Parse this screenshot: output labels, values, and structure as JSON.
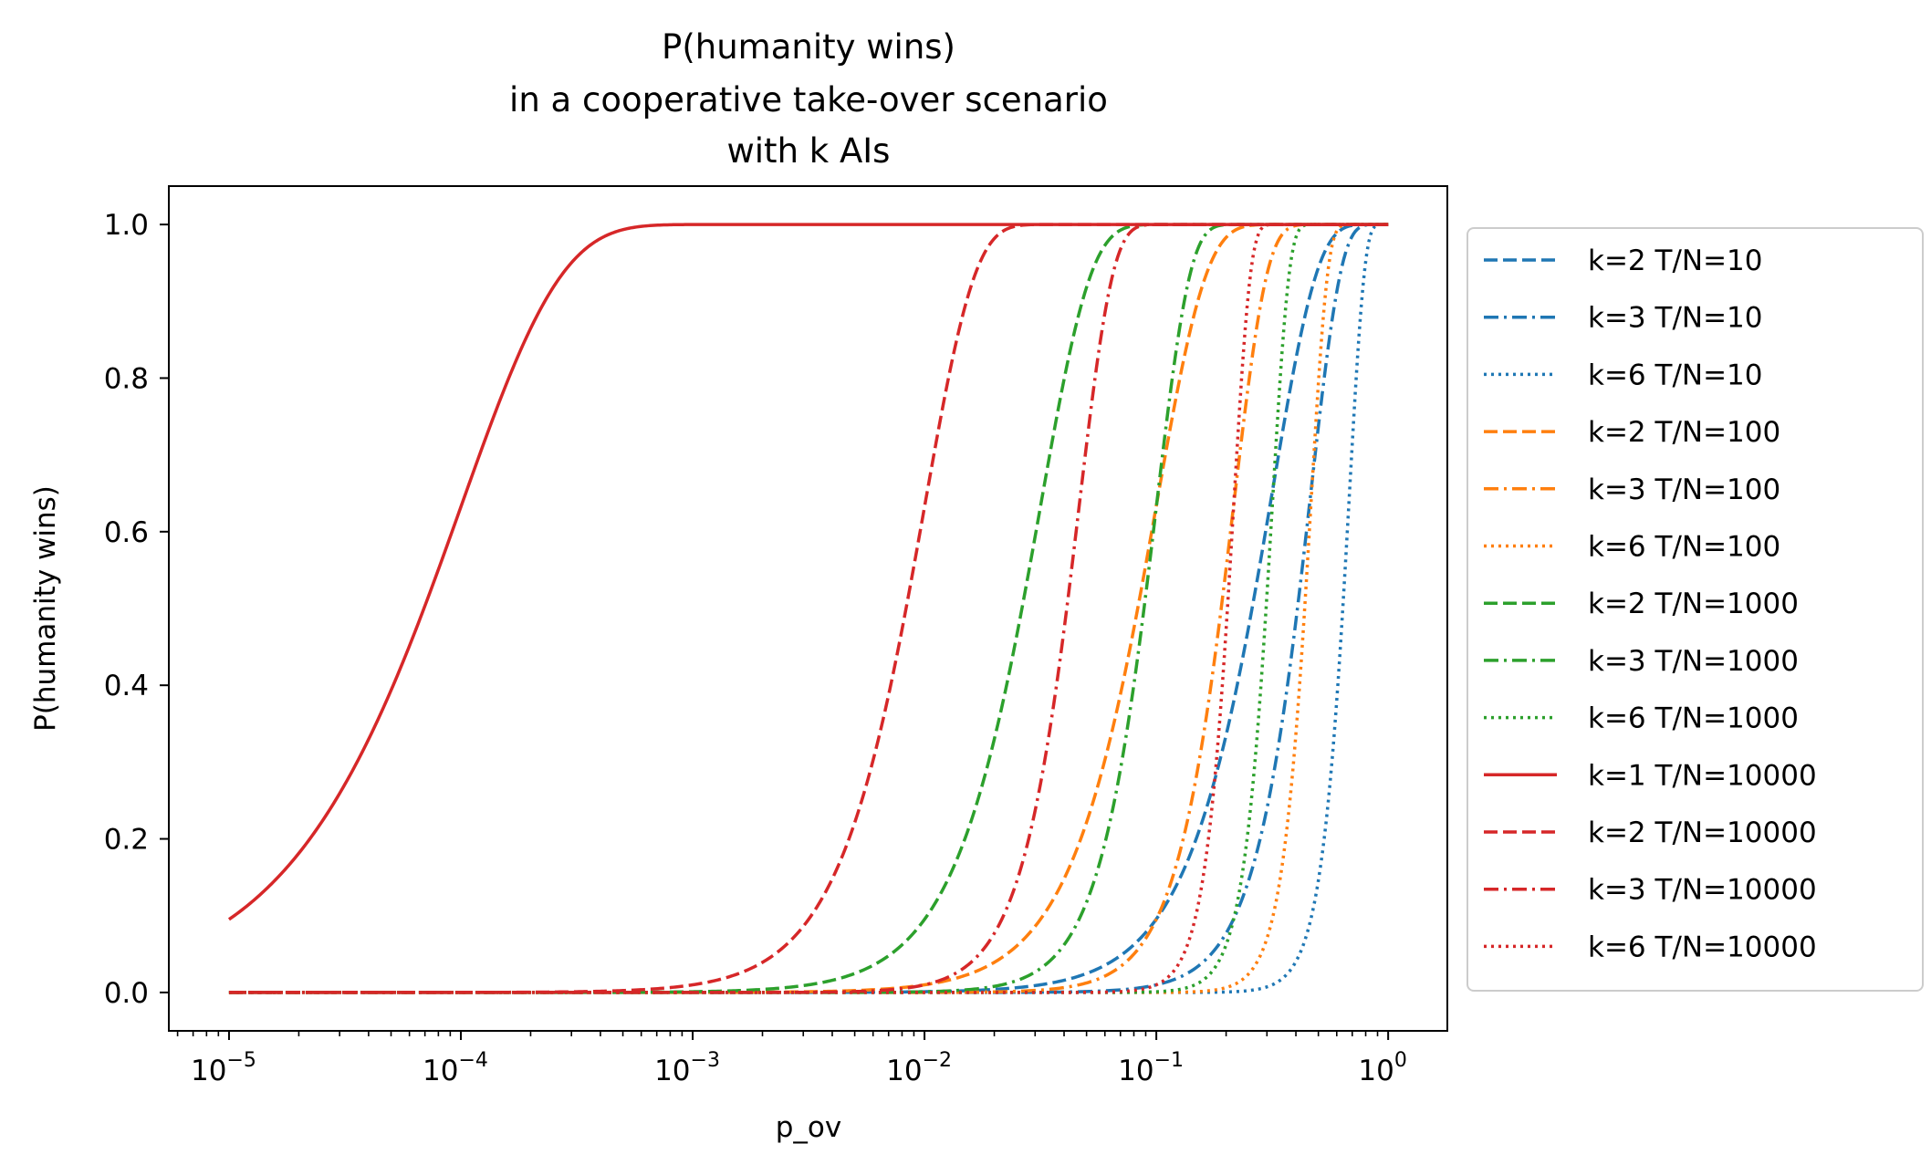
{
  "chart_data": {
    "type": "line",
    "title": [
      "P(humanity wins)",
      "in a cooperative take-over scenario",
      "with k AIs"
    ],
    "xlabel": "p_ov",
    "ylabel": "P(humanity wins)",
    "xscale": "log",
    "xlim": [
      5.5e-06,
      1.8
    ],
    "ylim": [
      -0.05,
      1.05
    ],
    "x_ticks": [
      {
        "value": 1e-05,
        "base": "10",
        "exp": "−5"
      },
      {
        "value": 0.0001,
        "base": "10",
        "exp": "−4"
      },
      {
        "value": 0.001,
        "base": "10",
        "exp": "−3"
      },
      {
        "value": 0.01,
        "base": "10",
        "exp": "−2"
      },
      {
        "value": 0.1,
        "base": "10",
        "exp": "−1"
      },
      {
        "value": 1,
        "base": "10",
        "exp": "0"
      }
    ],
    "y_ticks": [
      "0.0",
      "0.2",
      "0.4",
      "0.6",
      "0.8",
      "1.0"
    ],
    "grid": false,
    "legend_position": "outside right",
    "x_range": [
      1e-05,
      1
    ],
    "series": [
      {
        "name": "k=2 T/N=10",
        "k": 2,
        "TN": 10,
        "color": "#1f77b4",
        "style": "dashed"
      },
      {
        "name": "k=3 T/N=10",
        "k": 3,
        "TN": 10,
        "color": "#1f77b4",
        "style": "dashdot"
      },
      {
        "name": "k=6 T/N=10",
        "k": 6,
        "TN": 10,
        "color": "#1f77b4",
        "style": "dotted"
      },
      {
        "name": "k=2 T/N=100",
        "k": 2,
        "TN": 100,
        "color": "#ff7f0e",
        "style": "dashed"
      },
      {
        "name": "k=3 T/N=100",
        "k": 3,
        "TN": 100,
        "color": "#ff7f0e",
        "style": "dashdot"
      },
      {
        "name": "k=6 T/N=100",
        "k": 6,
        "TN": 100,
        "color": "#ff7f0e",
        "style": "dotted"
      },
      {
        "name": "k=2 T/N=1000",
        "k": 2,
        "TN": 1000,
        "color": "#2ca02c",
        "style": "dashed"
      },
      {
        "name": "k=3 T/N=1000",
        "k": 3,
        "TN": 1000,
        "color": "#2ca02c",
        "style": "dashdot"
      },
      {
        "name": "k=6 T/N=1000",
        "k": 6,
        "TN": 1000,
        "color": "#2ca02c",
        "style": "dotted"
      },
      {
        "name": "k=1 T/N=10000",
        "k": 1,
        "TN": 10000,
        "color": "#d62728",
        "style": "solid"
      },
      {
        "name": "k=2 T/N=10000",
        "k": 2,
        "TN": 10000,
        "color": "#d62728",
        "style": "dashed"
      },
      {
        "name": "k=3 T/N=10000",
        "k": 3,
        "TN": 10000,
        "color": "#d62728",
        "style": "dashdot"
      },
      {
        "name": "k=6 T/N=10000",
        "k": 6,
        "TN": 10000,
        "color": "#d62728",
        "style": "dotted"
      }
    ]
  }
}
